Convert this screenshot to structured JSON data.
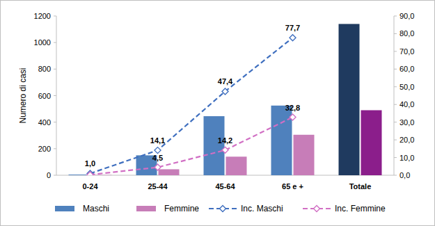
{
  "chart_data": {
    "type": "bar",
    "y_label": "Numero di casi",
    "categories": [
      "0-24",
      "25-44",
      "45-64",
      "65 e +",
      "Totale"
    ],
    "ylim": [
      0,
      1200
    ],
    "yticks": [
      0,
      200,
      400,
      600,
      800,
      1000,
      1200
    ],
    "y2lim": [
      0,
      90
    ],
    "y2ticks": [
      {
        "value": 0,
        "label": "0,0"
      },
      {
        "value": 10,
        "label": "10,0"
      },
      {
        "value": 20,
        "label": "20,0"
      },
      {
        "value": 30,
        "label": "30,0"
      },
      {
        "value": 40,
        "label": "40,0"
      },
      {
        "value": 50,
        "label": "50,0"
      },
      {
        "value": 60,
        "label": "60,0"
      },
      {
        "value": 70,
        "label": "70,0"
      },
      {
        "value": 80,
        "label": "80,0"
      },
      {
        "value": 90,
        "label": "90,0"
      }
    ],
    "grid": false,
    "legend": "bottom",
    "series": [
      {
        "name": "Maschi",
        "type": "bar",
        "color": "#4f81bd",
        "colors": [
          "#4f81bd",
          "#4f81bd",
          "#4f81bd",
          "#4f81bd",
          "#1f3a5f"
        ],
        "values": [
          5,
          150,
          445,
          525,
          1140
        ]
      },
      {
        "name": "Femmine",
        "type": "bar",
        "color": "#c77db8",
        "colors": [
          "#c77db8",
          "#c77db8",
          "#c77db8",
          "#c77db8",
          "#8b1e8b"
        ],
        "values": [
          2,
          45,
          140,
          305,
          490
        ]
      },
      {
        "name": "Inc. Maschi",
        "type": "line",
        "axis": "y2",
        "color": "#3f6fbf",
        "line_style": "dashed",
        "marker": "diamond",
        "data_labels": true,
        "values": [
          1.0,
          14.1,
          47.4,
          77.7,
          null
        ],
        "value_labels": [
          "1,0",
          "14,1",
          "47,4",
          "77,7",
          null
        ]
      },
      {
        "name": "Inc. Femmine",
        "type": "line",
        "axis": "y2",
        "color": "#d16fc4",
        "line_style": "dashed",
        "marker": "diamond",
        "data_labels": true,
        "values": [
          0.3,
          4.5,
          14.2,
          32.8,
          null
        ],
        "value_labels": [
          null,
          "4,5",
          "14,2",
          "32,8",
          null
        ]
      }
    ]
  }
}
